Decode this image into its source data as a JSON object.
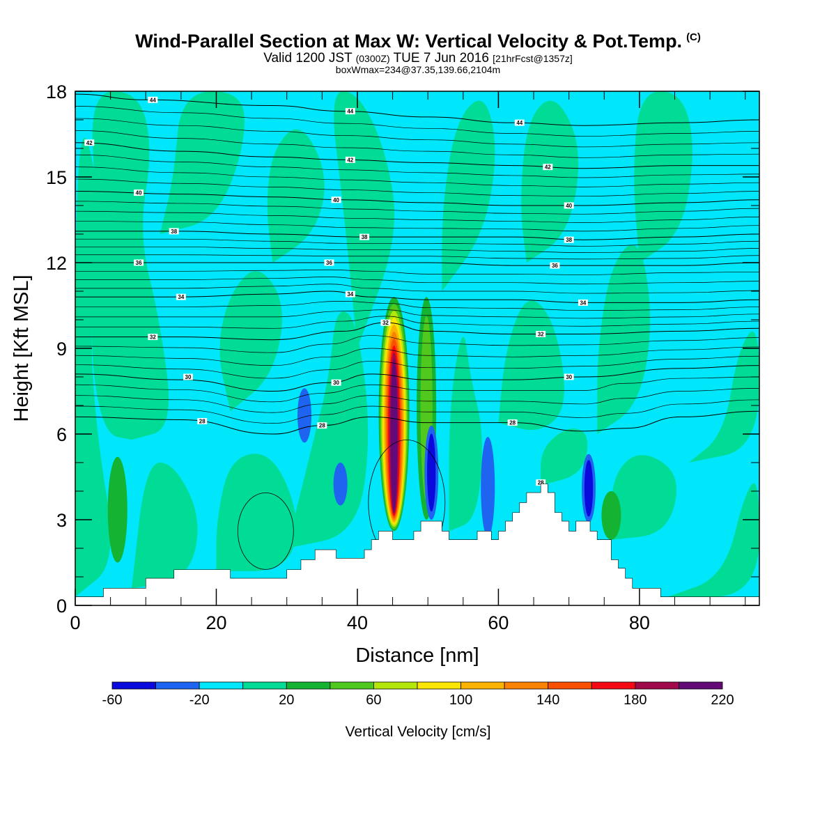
{
  "title": {
    "main": "Wind-Parallel Section at Max W: Vertical Velocity & Pot.Temp.",
    "mark": "(C)",
    "valid_prefix": "Valid 1200 JST",
    "valid_utc": "(0300Z)",
    "valid_date": "TUE 7 Jun 2016",
    "forecast": "[21hrFcst@1357z]",
    "box": "boxWmax=234@37.35,139.66,2104m"
  },
  "chart_data": {
    "type": "heatmap",
    "xlabel": "Distance [nm]",
    "ylabel": "Height [Kft MSL]",
    "xlim": [
      0,
      97
    ],
    "ylim": [
      0,
      18
    ],
    "x_ticks": [
      0,
      20,
      40,
      60,
      80
    ],
    "y_ticks": [
      0,
      3,
      6,
      9,
      12,
      15,
      18
    ],
    "colorbar": {
      "label": "Vertical Velocity [cm/s]",
      "tick_labels": [
        "-60",
        "-20",
        "20",
        "60",
        "100",
        "140",
        "180",
        "220"
      ],
      "bounds": [
        -60,
        -40,
        -20,
        0,
        20,
        40,
        60,
        80,
        100,
        120,
        140,
        160,
        180,
        200,
        220
      ],
      "colors": [
        "#0a0adc",
        "#1e64f0",
        "#00e6fa",
        "#00dc96",
        "#14b432",
        "#50c81e",
        "#b4e60a",
        "#fae600",
        "#fab400",
        "#fa8200",
        "#fa5000",
        "#f50a14",
        "#a00a4b",
        "#640a78"
      ]
    },
    "terrain": [
      [
        0,
        0.3
      ],
      [
        4,
        0.3
      ],
      [
        4,
        0.6
      ],
      [
        10,
        0.6
      ],
      [
        10,
        0.95
      ],
      [
        14,
        0.95
      ],
      [
        14,
        1.25
      ],
      [
        22,
        1.25
      ],
      [
        22,
        0.95
      ],
      [
        30,
        0.95
      ],
      [
        30,
        1.25
      ],
      [
        32,
        1.25
      ],
      [
        32,
        1.6
      ],
      [
        34,
        1.6
      ],
      [
        34,
        1.95
      ],
      [
        37,
        1.95
      ],
      [
        37,
        1.65
      ],
      [
        41,
        1.65
      ],
      [
        41,
        1.95
      ],
      [
        42,
        1.95
      ],
      [
        42,
        2.3
      ],
      [
        43,
        2.3
      ],
      [
        43,
        2.6
      ],
      [
        45,
        2.6
      ],
      [
        45,
        2.3
      ],
      [
        48,
        2.3
      ],
      [
        48,
        2.6
      ],
      [
        49,
        2.6
      ],
      [
        49,
        2.95
      ],
      [
        52,
        2.95
      ],
      [
        52,
        2.6
      ],
      [
        53,
        2.6
      ],
      [
        53,
        2.3
      ],
      [
        57,
        2.3
      ],
      [
        57,
        2.6
      ],
      [
        59,
        2.6
      ],
      [
        59,
        2.3
      ],
      [
        60,
        2.3
      ],
      [
        60,
        2.6
      ],
      [
        61,
        2.6
      ],
      [
        61,
        2.95
      ],
      [
        62,
        2.95
      ],
      [
        62,
        3.25
      ],
      [
        63,
        3.25
      ],
      [
        63,
        3.6
      ],
      [
        64,
        3.6
      ],
      [
        64,
        3.95
      ],
      [
        66,
        3.95
      ],
      [
        66,
        4.25
      ],
      [
        67,
        4.25
      ],
      [
        67,
        3.95
      ],
      [
        68,
        3.95
      ],
      [
        68,
        3.25
      ],
      [
        69,
        3.25
      ],
      [
        69,
        2.95
      ],
      [
        70,
        2.95
      ],
      [
        70,
        2.6
      ],
      [
        71,
        2.6
      ],
      [
        71,
        2.95
      ],
      [
        73,
        2.95
      ],
      [
        73,
        2.6
      ],
      [
        74,
        2.6
      ],
      [
        74,
        2.3
      ],
      [
        76,
        2.3
      ],
      [
        76,
        1.6
      ],
      [
        77,
        1.6
      ],
      [
        77,
        1.3
      ],
      [
        78,
        1.3
      ],
      [
        78,
        0.95
      ],
      [
        79,
        0.95
      ],
      [
        79,
        0.6
      ],
      [
        83,
        0.6
      ],
      [
        83,
        0.3
      ],
      [
        97,
        0.3
      ]
    ],
    "isentropes": [
      {
        "label": "28",
        "points": [
          [
            0,
            6.6
          ],
          [
            15,
            6.5
          ],
          [
            28,
            6.0
          ],
          [
            35,
            6.3
          ],
          [
            42,
            6.6
          ],
          [
            50,
            6.4
          ],
          [
            62,
            6.4
          ],
          [
            72,
            6.1
          ],
          [
            78,
            6.2
          ],
          [
            86,
            6.6
          ],
          [
            97,
            6.8
          ]
        ],
        "labels_at": [
          [
            18,
            6.45
          ],
          [
            35,
            6.3
          ],
          [
            62,
            6.4
          ],
          [
            66,
            4.3
          ]
        ]
      },
      {
        "label": "30",
        "points": [
          [
            0,
            8.1
          ],
          [
            15,
            7.9
          ],
          [
            28,
            7.5
          ],
          [
            36,
            7.8
          ],
          [
            42,
            8.1
          ],
          [
            50,
            7.9
          ],
          [
            62,
            7.9
          ],
          [
            72,
            8.0
          ],
          [
            86,
            8.3
          ],
          [
            97,
            8.4
          ]
        ],
        "labels_at": [
          [
            16,
            8.0
          ],
          [
            37,
            7.8
          ],
          [
            70,
            8.0
          ]
        ]
      },
      {
        "label": "32",
        "points": [
          [
            0,
            9.4
          ],
          [
            15,
            9.4
          ],
          [
            28,
            9.3
          ],
          [
            38,
            9.6
          ],
          [
            44,
            9.9
          ],
          [
            50,
            9.6
          ],
          [
            62,
            9.5
          ],
          [
            72,
            9.5
          ],
          [
            86,
            9.6
          ],
          [
            97,
            9.7
          ]
        ],
        "labels_at": [
          [
            11,
            9.4
          ],
          [
            44,
            9.9
          ],
          [
            66,
            9.5
          ]
        ]
      },
      {
        "label": "34",
        "points": [
          [
            0,
            10.8
          ],
          [
            15,
            10.8
          ],
          [
            28,
            10.9
          ],
          [
            36,
            11.0
          ],
          [
            42,
            10.8
          ],
          [
            50,
            10.7
          ],
          [
            62,
            10.7
          ],
          [
            72,
            10.6
          ],
          [
            86,
            10.6
          ],
          [
            97,
            10.7
          ]
        ],
        "labels_at": [
          [
            15,
            10.8
          ],
          [
            39,
            10.9
          ],
          [
            72,
            10.6
          ]
        ]
      },
      {
        "label": "36",
        "points": [
          [
            0,
            12.0
          ],
          [
            15,
            12.0
          ],
          [
            28,
            12.0
          ],
          [
            38,
            12.0
          ],
          [
            50,
            12.0
          ],
          [
            62,
            11.9
          ],
          [
            72,
            11.9
          ],
          [
            86,
            11.9
          ],
          [
            97,
            12.0
          ]
        ],
        "labels_at": [
          [
            9,
            12.0
          ],
          [
            36,
            12.0
          ],
          [
            68,
            11.9
          ]
        ]
      },
      {
        "label": "38",
        "points": [
          [
            0,
            13.1
          ],
          [
            15,
            13.1
          ],
          [
            28,
            13.0
          ],
          [
            40,
            12.9
          ],
          [
            50,
            12.9
          ],
          [
            62,
            12.9
          ],
          [
            72,
            12.8
          ],
          [
            86,
            12.9
          ],
          [
            97,
            13.0
          ]
        ],
        "labels_at": [
          [
            14,
            13.1
          ],
          [
            41,
            12.9
          ],
          [
            70,
            12.8
          ]
        ]
      },
      {
        "label": "40",
        "points": [
          [
            0,
            14.5
          ],
          [
            15,
            14.4
          ],
          [
            28,
            14.3
          ],
          [
            38,
            14.2
          ],
          [
            50,
            14.1
          ],
          [
            62,
            14.0
          ],
          [
            72,
            14.0
          ],
          [
            86,
            14.1
          ],
          [
            97,
            14.2
          ]
        ],
        "labels_at": [
          [
            9,
            14.45
          ],
          [
            37,
            14.2
          ],
          [
            70,
            14.0
          ]
        ]
      },
      {
        "label": "42",
        "points": [
          [
            0,
            16.2
          ],
          [
            15,
            15.9
          ],
          [
            28,
            15.7
          ],
          [
            38,
            15.6
          ],
          [
            50,
            15.5
          ],
          [
            62,
            15.4
          ],
          [
            72,
            15.3
          ],
          [
            86,
            15.4
          ],
          [
            97,
            15.4
          ]
        ],
        "labels_at": [
          [
            2,
            16.2
          ],
          [
            39,
            15.6
          ],
          [
            67,
            15.35
          ]
        ]
      },
      {
        "label": "44",
        "points": [
          [
            0,
            17.9
          ],
          [
            10,
            17.7
          ],
          [
            28,
            17.5
          ],
          [
            38,
            17.3
          ],
          [
            50,
            17.1
          ],
          [
            62,
            16.9
          ],
          [
            72,
            16.8
          ],
          [
            86,
            16.9
          ],
          [
            97,
            17.0
          ]
        ],
        "labels_at": [
          [
            11,
            17.7
          ],
          [
            39,
            17.3
          ],
          [
            63,
            16.9
          ]
        ]
      }
    ],
    "w_features": [
      {
        "kind": "updraft",
        "x": 45.2,
        "y_bottom": 2.6,
        "y_top": 10.8,
        "w_max": 234
      },
      {
        "kind": "updraft",
        "x": 49.8,
        "y_bottom": 3.0,
        "y_top": 10.8,
        "w_max": 60
      },
      {
        "kind": "downdraft",
        "x": 50.5,
        "y_bottom": 3.0,
        "y_top": 6.3,
        "w_min": -60
      },
      {
        "kind": "downdraft",
        "x": 58.5,
        "y_bottom": 2.4,
        "y_top": 5.9,
        "w_min": -40
      },
      {
        "kind": "downdraft",
        "x": 72.8,
        "y_bottom": 2.9,
        "y_top": 5.3,
        "w_min": -60
      },
      {
        "kind": "downdraft",
        "x": 37.6,
        "y_bottom": 3.5,
        "y_top": 5.0,
        "w_min": -40
      },
      {
        "kind": "downdraft",
        "x": 32.5,
        "y_bottom": 5.7,
        "y_top": 7.6,
        "w_min": -40
      },
      {
        "kind": "updraft",
        "x": 6.0,
        "y_bottom": 1.5,
        "y_top": 5.2,
        "w_max": 40
      },
      {
        "kind": "updraft",
        "x": 76.0,
        "y_bottom": 2.3,
        "y_top": 4.0,
        "w_max": 40
      }
    ]
  }
}
